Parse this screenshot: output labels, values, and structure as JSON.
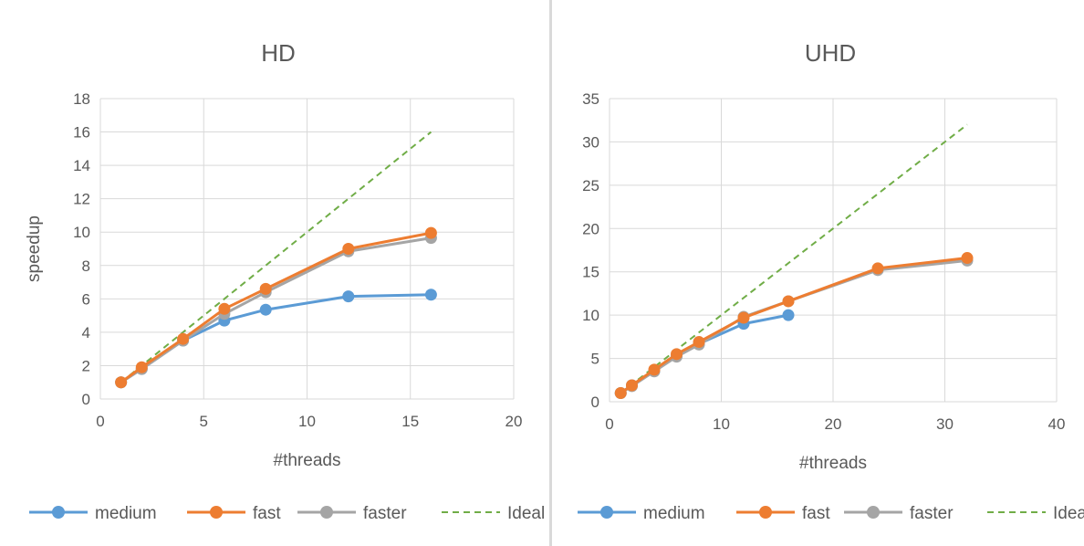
{
  "chart_data": [
    {
      "type": "line",
      "title": "HD",
      "xlabel": "#threads",
      "ylabel": "speedup",
      "xlim": [
        0,
        20
      ],
      "ylim": [
        0,
        18
      ],
      "xticks": [
        0,
        5,
        10,
        15,
        20
      ],
      "yticks": [
        0,
        2,
        4,
        6,
        8,
        10,
        12,
        14,
        16,
        18
      ],
      "grid": true,
      "legend_position": "bottom",
      "series": [
        {
          "name": "medium",
          "color": "#5b9bd5",
          "style": "solid-marker",
          "points": [
            [
              1,
              1.0
            ],
            [
              2,
              1.8
            ],
            [
              4,
              3.5
            ],
            [
              6,
              4.7
            ],
            [
              8,
              5.35
            ],
            [
              12,
              6.15
            ],
            [
              16,
              6.25
            ]
          ]
        },
        {
          "name": "fast",
          "color": "#ed7d31",
          "style": "solid-marker",
          "points": [
            [
              1,
              1.0
            ],
            [
              2,
              1.9
            ],
            [
              4,
              3.6
            ],
            [
              6,
              5.4
            ],
            [
              8,
              6.6
            ],
            [
              12,
              9.0
            ],
            [
              16,
              9.95
            ]
          ]
        },
        {
          "name": "faster",
          "color": "#a5a5a5",
          "style": "solid-marker",
          "points": [
            [
              1,
              1.0
            ],
            [
              2,
              1.8
            ],
            [
              4,
              3.5
            ],
            [
              6,
              5.1
            ],
            [
              8,
              6.4
            ],
            [
              12,
              8.85
            ],
            [
              16,
              9.65
            ]
          ]
        },
        {
          "name": "Ideal",
          "color": "#70ad47",
          "style": "dashed",
          "points": [
            [
              1,
              1
            ],
            [
              16,
              16
            ]
          ]
        }
      ]
    },
    {
      "type": "line",
      "title": "UHD",
      "xlabel": "#threads",
      "ylabel": "",
      "xlim": [
        0,
        40
      ],
      "ylim": [
        0,
        35
      ],
      "xticks": [
        0,
        10,
        20,
        30,
        40
      ],
      "yticks": [
        0,
        5,
        10,
        15,
        20,
        25,
        30,
        35
      ],
      "grid": true,
      "legend_position": "bottom",
      "series": [
        {
          "name": "medium",
          "color": "#5b9bd5",
          "style": "solid-marker",
          "points": [
            [
              1,
              1.0
            ],
            [
              2,
              1.9
            ],
            [
              4,
              3.6
            ],
            [
              6,
              5.3
            ],
            [
              8,
              6.7
            ],
            [
              12,
              9.0
            ],
            [
              16,
              10.0
            ]
          ]
        },
        {
          "name": "fast",
          "color": "#ed7d31",
          "style": "solid-marker",
          "points": [
            [
              1,
              1.0
            ],
            [
              2,
              1.9
            ],
            [
              4,
              3.7
            ],
            [
              6,
              5.5
            ],
            [
              8,
              6.9
            ],
            [
              12,
              9.7
            ],
            [
              16,
              11.6
            ],
            [
              24,
              15.4
            ],
            [
              32,
              16.6
            ]
          ]
        },
        {
          "name": "faster",
          "color": "#a5a5a5",
          "style": "solid-marker",
          "points": [
            [
              1,
              1.0
            ],
            [
              2,
              1.8
            ],
            [
              4,
              3.5
            ],
            [
              6,
              5.2
            ],
            [
              8,
              6.6
            ],
            [
              12,
              9.8
            ],
            [
              16,
              11.6
            ],
            [
              24,
              15.2
            ],
            [
              32,
              16.3
            ]
          ]
        },
        {
          "name": "Ideal",
          "color": "#70ad47",
          "style": "dashed",
          "points": [
            [
              1,
              1
            ],
            [
              32,
              32
            ]
          ]
        }
      ]
    }
  ]
}
